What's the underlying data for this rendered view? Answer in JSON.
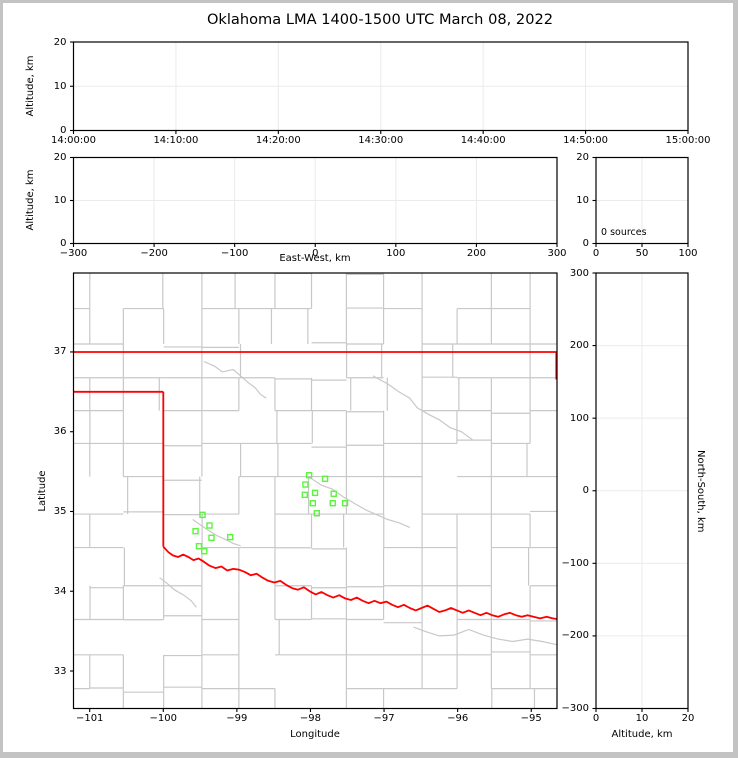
{
  "title": "Oklahoma LMA 1400-1500 UTC March 08, 2022",
  "colors": {
    "source_marker": "#5cf53e",
    "state_border": "#ff0000",
    "county_line": "#c8c8c8",
    "river_line": "#c8c8c8",
    "gridline": "#ebebeb",
    "spine": "#000000",
    "frame": "#c3c3c3",
    "background": "#ffffff"
  },
  "chart_data": [
    {
      "id": "time_height",
      "type": "scatter",
      "title": "",
      "xlabel": "",
      "ylabel": "Altitude, km",
      "xlim": [
        0,
        3600
      ],
      "ylim": [
        0,
        20
      ],
      "xticks": {
        "values": [
          0,
          600,
          1200,
          1800,
          2400,
          3000,
          3600
        ],
        "labels": [
          "14:00:00",
          "14:10:00",
          "14:20:00",
          "14:30:00",
          "14:40:00",
          "14:50:00",
          "15:00:00"
        ]
      },
      "yticks": {
        "values": [
          0,
          10,
          20
        ],
        "labels": [
          "0",
          "10",
          "20"
        ]
      },
      "grid": true,
      "points": []
    },
    {
      "id": "ew_height",
      "type": "scatter",
      "xlabel": "East-West, km",
      "ylabel": "Altitude, km",
      "xlim": [
        -300,
        300
      ],
      "ylim": [
        0,
        20
      ],
      "xticks": {
        "values": [
          -300,
          -200,
          -100,
          0,
          100,
          200,
          300
        ],
        "labels": [
          "−300",
          "−200",
          "−100",
          "0",
          "100",
          "200",
          "300"
        ]
      },
      "yticks": {
        "values": [
          0,
          10,
          20
        ],
        "labels": [
          "0",
          "10",
          "20"
        ]
      },
      "grid": true,
      "points": []
    },
    {
      "id": "alt_histogram",
      "type": "line",
      "annotation": "0 sources",
      "xlabel": "",
      "ylabel": "",
      "xlim": [
        0,
        100
      ],
      "ylim": [
        0,
        20
      ],
      "xticks": {
        "values": [
          0,
          50,
          100
        ],
        "labels": [
          "0",
          "50",
          "100"
        ]
      },
      "yticks": {
        "values": [
          0,
          10,
          20
        ],
        "labels": [
          "0",
          "10",
          "20"
        ]
      },
      "grid": true,
      "points": []
    },
    {
      "id": "plan_view",
      "type": "scatter",
      "xlabel": "Longitude",
      "ylabel": "Latitude",
      "xlim": [
        -101.22,
        -94.65
      ],
      "ylim": [
        32.53,
        37.99
      ],
      "xticks": {
        "values": [
          -101,
          -100,
          -99,
          -98,
          -97,
          -96,
          -95
        ],
        "labels": [
          "−101",
          "−100",
          "−99",
          "−98",
          "−97",
          "−96",
          "−95"
        ]
      },
      "yticks": {
        "values": [
          33,
          34,
          35,
          36,
          37
        ],
        "labels": [
          "33",
          "34",
          "35",
          "36",
          "37"
        ]
      },
      "grid": false,
      "sources": [
        [
          -99.467,
          34.958
        ],
        [
          -99.372,
          34.824
        ],
        [
          -99.562,
          34.753
        ],
        [
          -99.345,
          34.67
        ],
        [
          -99.091,
          34.678
        ],
        [
          -99.515,
          34.565
        ],
        [
          -99.443,
          34.502
        ],
        [
          -98.019,
          35.455
        ],
        [
          -97.802,
          35.41
        ],
        [
          -98.069,
          35.338
        ],
        [
          -97.938,
          35.234
        ],
        [
          -98.077,
          35.209
        ],
        [
          -97.684,
          35.222
        ],
        [
          -97.697,
          35.104
        ],
        [
          -97.53,
          35.104
        ],
        [
          -97.968,
          35.104
        ],
        [
          -97.914,
          34.978
        ]
      ],
      "state_border": [
        [
          [
            -101.22,
            37.0
          ],
          [
            -94.65,
            37.0
          ]
        ],
        [
          [
            -94.66,
            37.0
          ],
          [
            -94.66,
            36.655
          ]
        ],
        [
          [
            -101.22,
            36.5
          ],
          [
            -100.0,
            36.5
          ]
        ],
        [
          [
            -100.0,
            36.5
          ],
          [
            -100.0,
            34.56
          ]
        ],
        [
          [
            -100.0,
            34.56
          ],
          [
            -99.93,
            34.49
          ],
          [
            -99.87,
            34.45
          ],
          [
            -99.8,
            34.43
          ],
          [
            -99.73,
            34.46
          ],
          [
            -99.66,
            34.43
          ],
          [
            -99.59,
            34.39
          ],
          [
            -99.52,
            34.41
          ],
          [
            -99.45,
            34.37
          ],
          [
            -99.37,
            34.32
          ],
          [
            -99.29,
            34.29
          ],
          [
            -99.21,
            34.31
          ],
          [
            -99.13,
            34.26
          ],
          [
            -99.05,
            34.28
          ],
          [
            -98.97,
            34.27
          ],
          [
            -98.89,
            34.24
          ],
          [
            -98.81,
            34.2
          ],
          [
            -98.73,
            34.22
          ],
          [
            -98.65,
            34.17
          ],
          [
            -98.57,
            34.13
          ],
          [
            -98.49,
            34.11
          ],
          [
            -98.41,
            34.13
          ],
          [
            -98.33,
            34.08
          ],
          [
            -98.25,
            34.04
          ],
          [
            -98.17,
            34.02
          ],
          [
            -98.09,
            34.05
          ],
          [
            -98.01,
            34.0
          ],
          [
            -97.93,
            33.96
          ],
          [
            -97.85,
            33.99
          ],
          [
            -97.77,
            33.95
          ],
          [
            -97.69,
            33.92
          ],
          [
            -97.61,
            33.95
          ],
          [
            -97.53,
            33.91
          ],
          [
            -97.45,
            33.89
          ],
          [
            -97.37,
            33.92
          ],
          [
            -97.29,
            33.88
          ],
          [
            -97.21,
            33.85
          ],
          [
            -97.13,
            33.88
          ],
          [
            -97.05,
            33.85
          ],
          [
            -96.97,
            33.87
          ],
          [
            -96.89,
            33.83
          ],
          [
            -96.81,
            33.8
          ],
          [
            -96.73,
            33.83
          ],
          [
            -96.65,
            33.79
          ],
          [
            -96.57,
            33.76
          ],
          [
            -96.49,
            33.79
          ],
          [
            -96.41,
            33.82
          ],
          [
            -96.33,
            33.78
          ],
          [
            -96.25,
            33.74
          ],
          [
            -96.17,
            33.76
          ],
          [
            -96.09,
            33.79
          ],
          [
            -96.01,
            33.76
          ],
          [
            -95.93,
            33.73
          ],
          [
            -95.85,
            33.76
          ],
          [
            -95.77,
            33.73
          ],
          [
            -95.69,
            33.7
          ],
          [
            -95.61,
            33.73
          ],
          [
            -95.53,
            33.7
          ],
          [
            -95.45,
            33.68
          ],
          [
            -95.37,
            33.71
          ],
          [
            -95.29,
            33.73
          ],
          [
            -95.21,
            33.7
          ],
          [
            -95.13,
            33.68
          ],
          [
            -95.05,
            33.7
          ],
          [
            -94.97,
            33.68
          ],
          [
            -94.88,
            33.66
          ],
          [
            -94.79,
            33.68
          ],
          [
            -94.71,
            33.66
          ],
          [
            -94.63,
            33.65
          ]
        ]
      ],
      "rivers": [
        [
          [
            -99.45,
            36.88
          ],
          [
            -99.3,
            36.82
          ],
          [
            -99.2,
            36.75
          ],
          [
            -99.05,
            36.78
          ],
          [
            -98.95,
            36.7
          ],
          [
            -98.85,
            36.62
          ],
          [
            -98.75,
            36.55
          ],
          [
            -98.68,
            36.47
          ],
          [
            -98.6,
            36.42
          ]
        ],
        [
          [
            -97.15,
            36.7
          ],
          [
            -96.95,
            36.6
          ],
          [
            -96.8,
            36.5
          ],
          [
            -96.65,
            36.42
          ],
          [
            -96.55,
            36.3
          ],
          [
            -96.4,
            36.22
          ],
          [
            -96.25,
            36.15
          ],
          [
            -96.1,
            36.05
          ],
          [
            -95.95,
            36.0
          ],
          [
            -95.8,
            35.9
          ]
        ],
        [
          [
            -98.0,
            35.42
          ],
          [
            -97.85,
            35.33
          ],
          [
            -97.7,
            35.28
          ],
          [
            -97.55,
            35.18
          ],
          [
            -97.4,
            35.1
          ],
          [
            -97.25,
            35.02
          ],
          [
            -97.1,
            34.96
          ],
          [
            -96.95,
            34.9
          ],
          [
            -96.8,
            34.86
          ],
          [
            -96.65,
            34.8
          ]
        ],
        [
          [
            -99.6,
            34.9
          ],
          [
            -99.48,
            34.82
          ],
          [
            -99.38,
            34.76
          ],
          [
            -99.28,
            34.7
          ],
          [
            -99.18,
            34.66
          ],
          [
            -99.05,
            34.6
          ],
          [
            -98.95,
            34.57
          ]
        ],
        [
          [
            -100.05,
            34.17
          ],
          [
            -99.95,
            34.1
          ],
          [
            -99.85,
            34.02
          ],
          [
            -99.72,
            33.95
          ],
          [
            -99.62,
            33.88
          ],
          [
            -99.55,
            33.8
          ]
        ],
        [
          [
            -96.6,
            33.55
          ],
          [
            -96.42,
            33.49
          ],
          [
            -96.25,
            33.44
          ],
          [
            -96.05,
            33.45
          ],
          [
            -95.85,
            33.52
          ],
          [
            -95.65,
            33.45
          ],
          [
            -95.45,
            33.4
          ],
          [
            -95.25,
            33.37
          ],
          [
            -95.05,
            33.4
          ],
          [
            -94.85,
            33.37
          ],
          [
            -94.65,
            33.33
          ]
        ]
      ]
    },
    {
      "id": "ns_height",
      "type": "scatter",
      "xlabel": "Altitude, km",
      "ylabel": "North-South, km",
      "xlim": [
        0,
        20
      ],
      "ylim": [
        -300,
        300
      ],
      "xticks": {
        "values": [
          0,
          10,
          20
        ],
        "labels": [
          "0",
          "10",
          "20"
        ]
      },
      "yticks": {
        "values": [
          300,
          200,
          100,
          0,
          -100,
          -200,
          -300
        ],
        "labels": [
          "300",
          "200",
          "100",
          "0",
          "−100",
          "−200",
          "−300"
        ]
      },
      "grid": true,
      "points": []
    }
  ]
}
